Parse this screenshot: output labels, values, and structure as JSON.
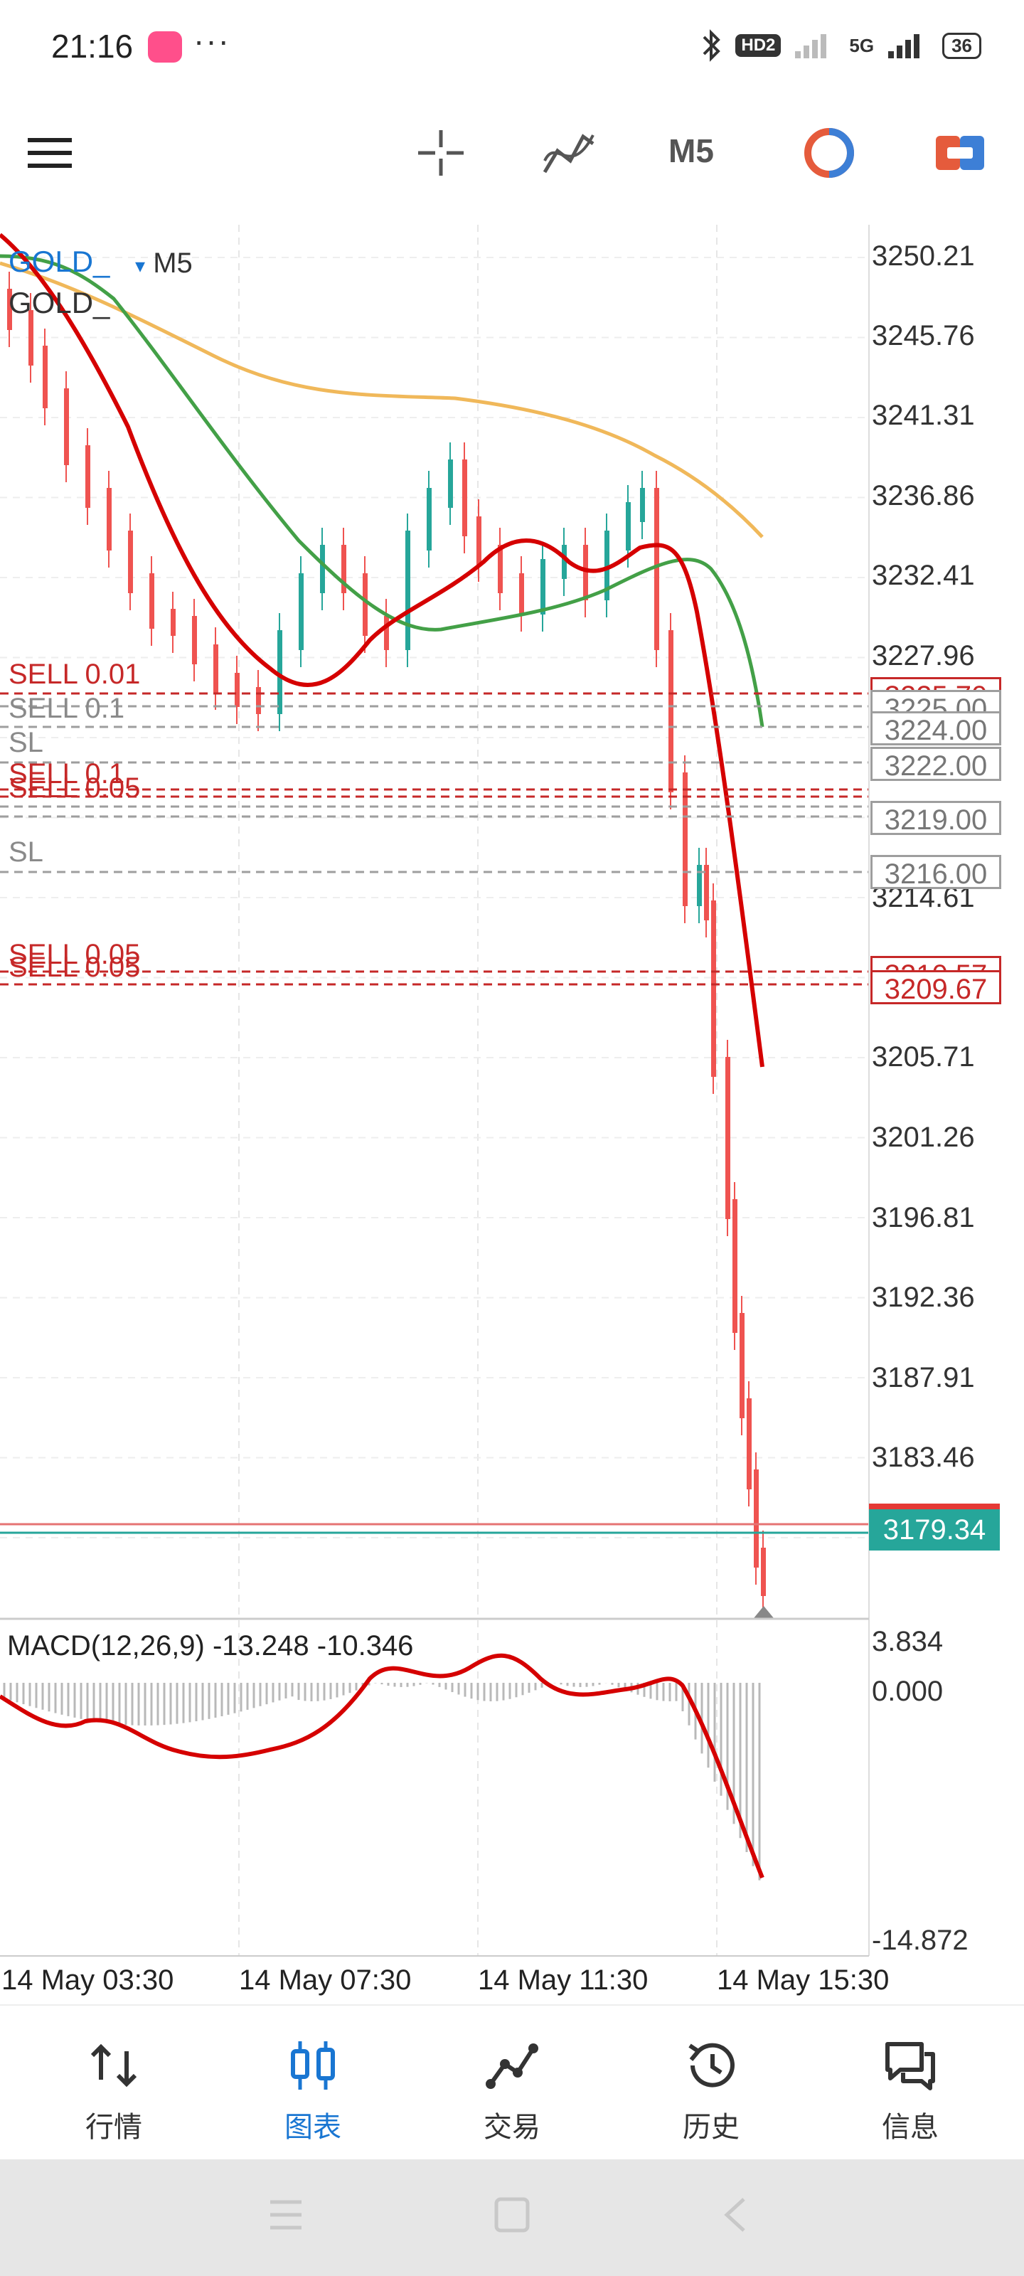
{
  "status_bar": {
    "time": "21:16",
    "dots": "···",
    "hd_label": "HD2",
    "network": "5G",
    "battery": "36",
    "icons": [
      "bluetooth-icon",
      "signal-icon",
      "battery-icon"
    ]
  },
  "toolbar": {
    "timeframe": "M5",
    "icons": [
      "menu-icon",
      "crosshair-icon",
      "indicators-icon",
      "timeframe-label",
      "color-theme-icon",
      "trade-icon"
    ]
  },
  "chart": {
    "symbol": "GOLD_",
    "symbol_dropdown": "▾",
    "timeframe": "M5",
    "symbol_sub": "GOLD_",
    "price_ticks": [
      "3250.21",
      "3245.76",
      "3241.31",
      "3236.86",
      "3232.41",
      "3227.96",
      "3214.61",
      "3205.71",
      "3201.26",
      "3196.81",
      "3192.36",
      "3187.91",
      "3183.46"
    ],
    "price_boxes": {
      "b1": "3225.70",
      "b2": "3225.00",
      "b3": "3224.00",
      "b4": "3222.00",
      "b5": "3219.00",
      "b6": "3216.00",
      "b7": "3210.57",
      "b8": "3209.67"
    },
    "current_price": "3179.34",
    "order_labels": {
      "o1": "SELL 0.01",
      "o2": "SELL 0.1",
      "o3": "SL",
      "o4": "SELL 0.1",
      "o5": "SELL 0.05",
      "o6": "SL",
      "o7": "SELL 0.05",
      "o8": "SELL 0.05"
    },
    "colors": {
      "bull_candle": "#26a69a",
      "bear_candle": "#ef5350",
      "ma_fast": "#d50000",
      "ma_mid": "#43a047",
      "ma_slow": "#f0b85a",
      "sell_line": "#c62828",
      "sl_line": "#9e9e9e",
      "current_price_bg": "#26a69a"
    }
  },
  "macd": {
    "label": "MACD(12,26,9) -13.248 -10.346",
    "ticks": [
      "3.834",
      "0.000",
      "-14.872"
    ]
  },
  "time_axis": [
    "14 May 03:30",
    "14 May 07:30",
    "14 May 11:30",
    "14 May 15:30"
  ],
  "bottom_nav": {
    "items": [
      {
        "label": "行情",
        "icon": "quotes-icon"
      },
      {
        "label": "图表",
        "icon": "chart-icon",
        "active": true
      },
      {
        "label": "交易",
        "icon": "trade-icon"
      },
      {
        "label": "历史",
        "icon": "history-icon"
      },
      {
        "label": "信息",
        "icon": "messages-icon"
      }
    ]
  },
  "system_nav": [
    "recent-apps-icon",
    "home-icon",
    "back-icon"
  ]
}
